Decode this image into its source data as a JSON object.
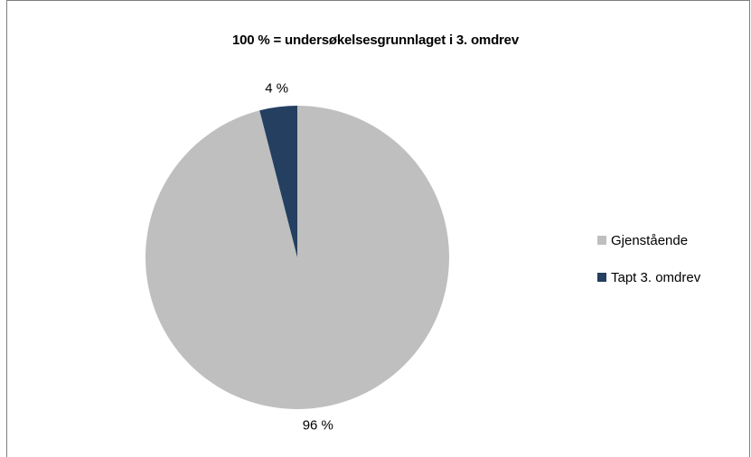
{
  "chart_data": {
    "type": "pie",
    "title": "100 % = undersøkelsesgrunnlaget i 3. omdrev",
    "slices": [
      {
        "name": "Gjenstående",
        "value": 96,
        "label": "96 %",
        "color": "#bfbfbf"
      },
      {
        "name": "Tapt 3. omdrev",
        "value": 4,
        "label": "4 %",
        "color": "#243f60"
      }
    ],
    "legend_position": "right"
  }
}
